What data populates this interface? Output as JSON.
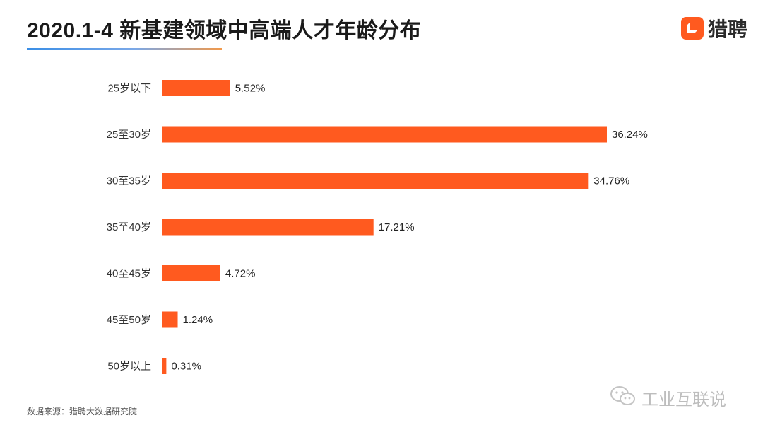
{
  "header": {
    "title": "2020.1-4 新基建领域中高端人才年龄分布",
    "brand": "猎聘"
  },
  "footer": {
    "source": "数据来源：猎聘大数据研究院",
    "watermark": "工业互联说"
  },
  "colors": {
    "bar": "#ff5a1f",
    "brand": "#ff5a1f"
  },
  "chart_data": {
    "type": "bar",
    "orientation": "horizontal",
    "title": "2020.1-4 新基建领域中高端人才年龄分布",
    "categories": [
      "25岁以下",
      "25至30岁",
      "30至35岁",
      "35至40岁",
      "40至45岁",
      "45至50岁",
      "50岁以上"
    ],
    "values": [
      5.52,
      36.24,
      34.76,
      17.21,
      4.72,
      1.24,
      0.31
    ],
    "value_labels": [
      "5.52%",
      "36.24%",
      "34.76%",
      "17.21%",
      "4.72%",
      "1.24%",
      "0.31%"
    ],
    "unit": "%",
    "xlim": [
      0,
      36.24
    ],
    "grid": false,
    "legend": "none"
  }
}
